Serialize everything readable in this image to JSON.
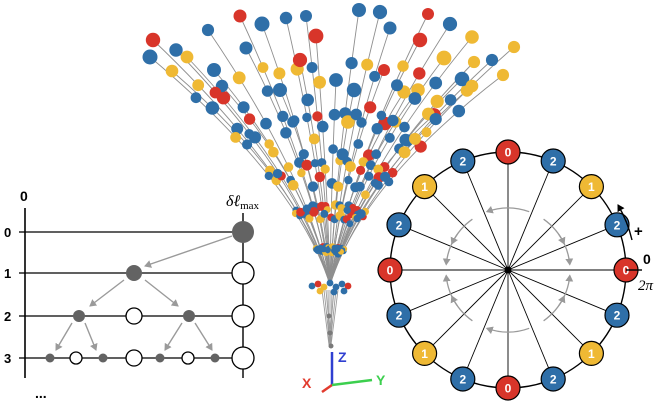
{
  "tree": {
    "top_axis_label": "0",
    "column_label": "δℓ",
    "column_label_sub": "max",
    "levels": [
      "0",
      "1",
      "2",
      "3"
    ],
    "continuation": "..."
  },
  "axes": {
    "z_label": "Z",
    "x_label": "X",
    "y_label": "Y",
    "z_color": "#2f3fd1",
    "x_color": "#e23b2e",
    "y_color": "#3ccf4e"
  },
  "ring": {
    "nodes_clockwise_from_top": [
      "0",
      "2",
      "1",
      "2",
      "0",
      "2",
      "1",
      "2",
      "0",
      "2",
      "1",
      "2",
      "0",
      "2",
      "1",
      "2"
    ],
    "direction_label": "+",
    "zero_label": "0",
    "two_pi_label": "2π"
  },
  "colors": {
    "label_0": "#d8352a",
    "label_1": "#efb934",
    "label_2": "#2f6fa8",
    "tree_node": "#636363",
    "arrow": "#9a9a9a"
  }
}
